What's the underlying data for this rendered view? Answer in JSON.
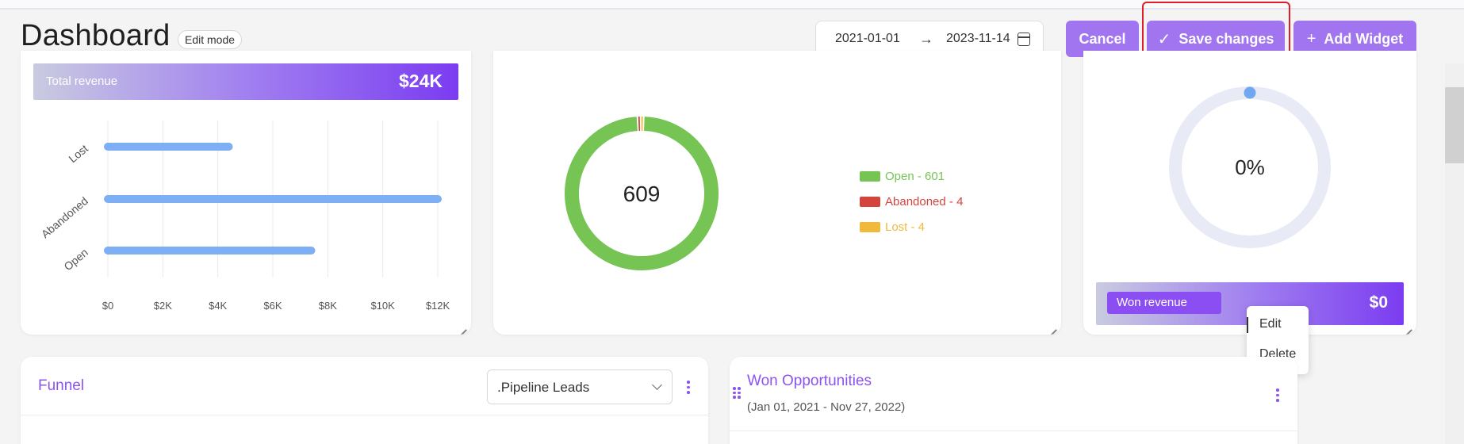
{
  "header": {
    "title": "Dashboard",
    "mode_badge": "Edit mode",
    "date_from": "2021-01-01",
    "date_to": "2023-11-14",
    "cancel_label": "Cancel",
    "save_label": "Save changes",
    "add_widget_label": "Add Widget"
  },
  "revenue_widget": {
    "banner_label": "Total revenue",
    "banner_value": "$24K",
    "chart_data": {
      "type": "bar",
      "orientation": "horizontal",
      "categories": [
        "Lost",
        "Abandoned",
        "Open"
      ],
      "values": [
        4400,
        12000,
        7400
      ],
      "xlim": [
        0,
        12000
      ],
      "x_ticks": [
        "$0",
        "$2K",
        "$4K",
        "$6K",
        "$8K",
        "$10K",
        "$12K"
      ],
      "grid": true,
      "color": "#7eaef3"
    }
  },
  "status_widget": {
    "center_value": "609",
    "chart_data": {
      "type": "pie",
      "donut": true,
      "categories": [
        "Open",
        "Abandoned",
        "Lost"
      ],
      "values": [
        601,
        4,
        4
      ],
      "colors": [
        "#76c453",
        "#d3443d",
        "#f0b93c"
      ],
      "legend": [
        "Open - 601",
        "Abandoned - 4",
        "Lost - 4"
      ],
      "legend_position": "right"
    }
  },
  "won_widget": {
    "percent": "0%",
    "progress_fraction": 0,
    "banner_label": "Won revenue",
    "banner_value": "$0"
  },
  "context_menu": {
    "edit": "Edit",
    "delete": "Delete"
  },
  "funnel_widget": {
    "title": "Funnel",
    "pipeline_select": ".Pipeline Leads"
  },
  "won_opps_widget": {
    "title": "Won Opportunities",
    "subtitle": "(Jan 01, 2021 - Nov 27, 2022)"
  },
  "colors": {
    "accent": "#a174f0",
    "title_purple": "#8c54ec",
    "annotation_red": "#e11d2a"
  }
}
